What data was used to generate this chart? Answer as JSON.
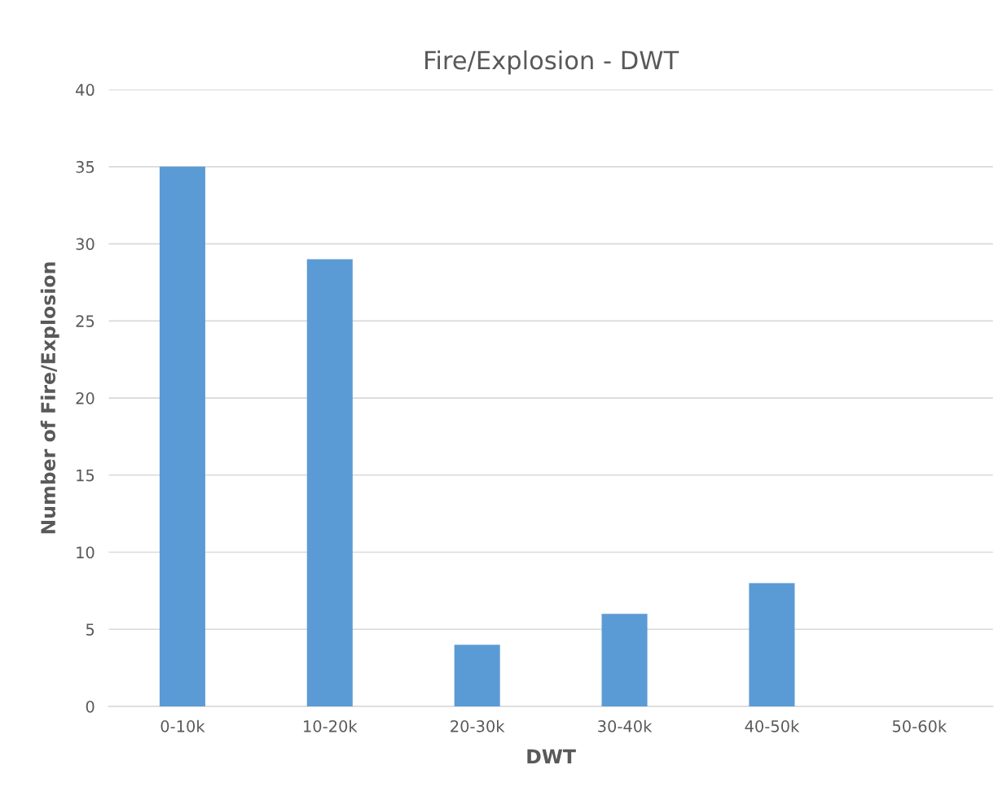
{
  "chart_data": {
    "type": "bar",
    "title": "Fire/Explosion - DWT",
    "xlabel": "DWT",
    "ylabel": "Number of Fire/Explosion",
    "categories": [
      "0-10k",
      "10-20k",
      "20-30k",
      "30-40k",
      "40-50k",
      "50-60k"
    ],
    "values": [
      35,
      29,
      4,
      6,
      8,
      0
    ],
    "color": "#5b9bd5",
    "ylim": [
      0,
      40
    ],
    "yticks": [
      0,
      5,
      10,
      15,
      20,
      25,
      30,
      35,
      40
    ],
    "grid": "y"
  }
}
